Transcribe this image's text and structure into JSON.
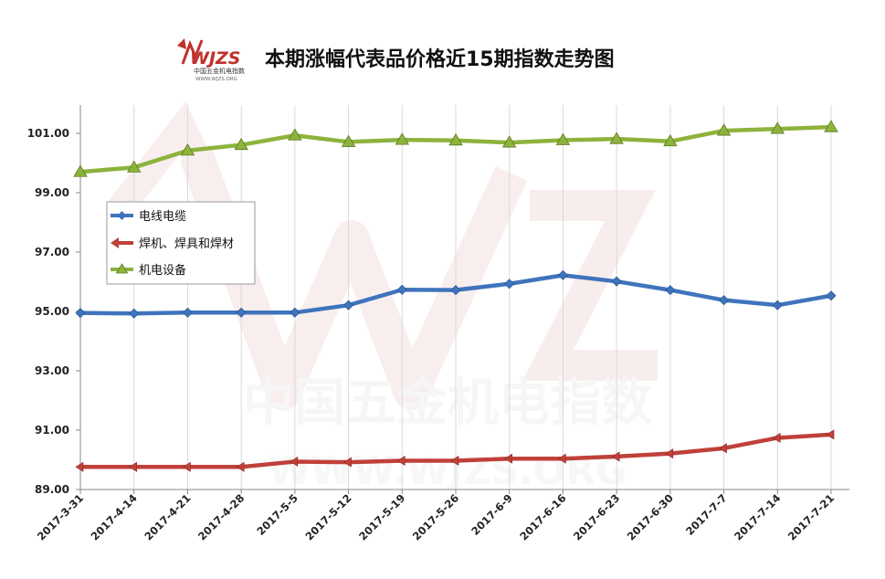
{
  "header": {
    "title": "本期涨幅代表品价格近15期指数走势图",
    "logo": {
      "text": "WJZS",
      "subtitle": "中国五金机电指数",
      "url": "WWW.WJZS.ORG"
    }
  },
  "watermark": {
    "line1": "中国五金机电指数",
    "line2": "WWW.WJZS.ORG"
  },
  "chart_data": {
    "type": "line",
    "title": "本期涨幅代表品价格近15期指数走势图",
    "xlabel": "",
    "ylabel": "",
    "ylim": [
      89,
      102.5
    ],
    "y_ticks": [
      "89.00",
      "91.00",
      "93.00",
      "95.00",
      "97.00",
      "99.00",
      "101.00"
    ],
    "grid": {
      "vertical": true,
      "horizontal": false
    },
    "legend_position": "upper-left",
    "categories": [
      "2017-3-31",
      "2017-4-14",
      "2017-4-21",
      "2017-4-28",
      "2017-5-5",
      "2017-5-12",
      "2017-5-19",
      "2017-5-26",
      "2017-6-9",
      "2017-6-16",
      "2017-6-23",
      "2017-6-30",
      "2017-7-7",
      "2017-7-14",
      "2017-7-21"
    ],
    "series": [
      {
        "name": "电线电缆",
        "color": "#3f74bd",
        "marker": "diamond",
        "values": [
          94.95,
          94.93,
          94.96,
          94.96,
          94.96,
          95.21,
          95.73,
          95.72,
          95.93,
          96.22,
          96.01,
          95.72,
          95.38,
          95.21,
          95.53
        ]
      },
      {
        "name": "焊机、焊具和焊材",
        "color": "#c0403a",
        "marker": "arrow-left",
        "values": [
          89.76,
          89.76,
          89.76,
          89.76,
          89.94,
          89.92,
          89.97,
          89.97,
          90.04,
          90.04,
          90.11,
          90.21,
          90.39,
          90.74,
          90.85
        ]
      },
      {
        "name": "机电设备",
        "color": "#8db33c",
        "marker": "triangle",
        "values": [
          99.7,
          99.85,
          100.42,
          100.61,
          100.93,
          100.71,
          100.78,
          100.76,
          100.69,
          100.77,
          100.81,
          100.73,
          101.09,
          101.15,
          101.21
        ]
      }
    ]
  }
}
